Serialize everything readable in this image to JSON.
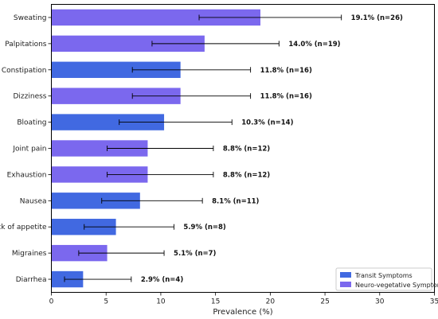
{
  "chart_data": {
    "type": "bar",
    "orientation": "horizontal",
    "title": "",
    "xlabel": "Prevalence (%)",
    "ylabel": "",
    "xlim": [
      0,
      35
    ],
    "xticks": [
      "0",
      "5",
      "10",
      "15",
      "20",
      "25",
      "30",
      "35"
    ],
    "grid": false,
    "legend_position": "bottom-right",
    "series": [
      {
        "name": "Transit Symptoms",
        "color": "#4169E1"
      },
      {
        "name": "Neuro-vegetative Symptoms",
        "color": "#7B68EE"
      }
    ],
    "categories": [
      "Sweating",
      "Palpitations",
      "Constipation",
      "Dizziness",
      "Bloating",
      "Joint pain",
      "Exhaustion",
      "Nausea",
      "Lack of appetite",
      "Migraines",
      "Diarrhea"
    ],
    "values": [
      19.1,
      14.0,
      11.8,
      11.8,
      10.3,
      8.8,
      8.8,
      8.1,
      5.9,
      5.1,
      2.9
    ],
    "series_index": [
      1,
      1,
      0,
      1,
      0,
      1,
      1,
      0,
      0,
      1,
      0
    ],
    "error_low": [
      13.5,
      9.2,
      7.4,
      7.4,
      6.2,
      5.1,
      5.1,
      4.6,
      3.0,
      2.5,
      1.2
    ],
    "error_high": [
      26.5,
      20.8,
      18.2,
      18.2,
      16.5,
      14.8,
      14.8,
      13.8,
      11.2,
      10.3,
      7.3
    ],
    "data_labels": [
      "19.1% (n=26)",
      "14.0% (n=19)",
      "11.8% (n=16)",
      "11.8% (n=16)",
      "10.3% (n=14)",
      "8.8% (n=12)",
      "8.8% (n=12)",
      "8.1% (n=11)",
      "5.9% (n=8)",
      "5.1% (n=7)",
      "2.9% (n=4)"
    ]
  }
}
